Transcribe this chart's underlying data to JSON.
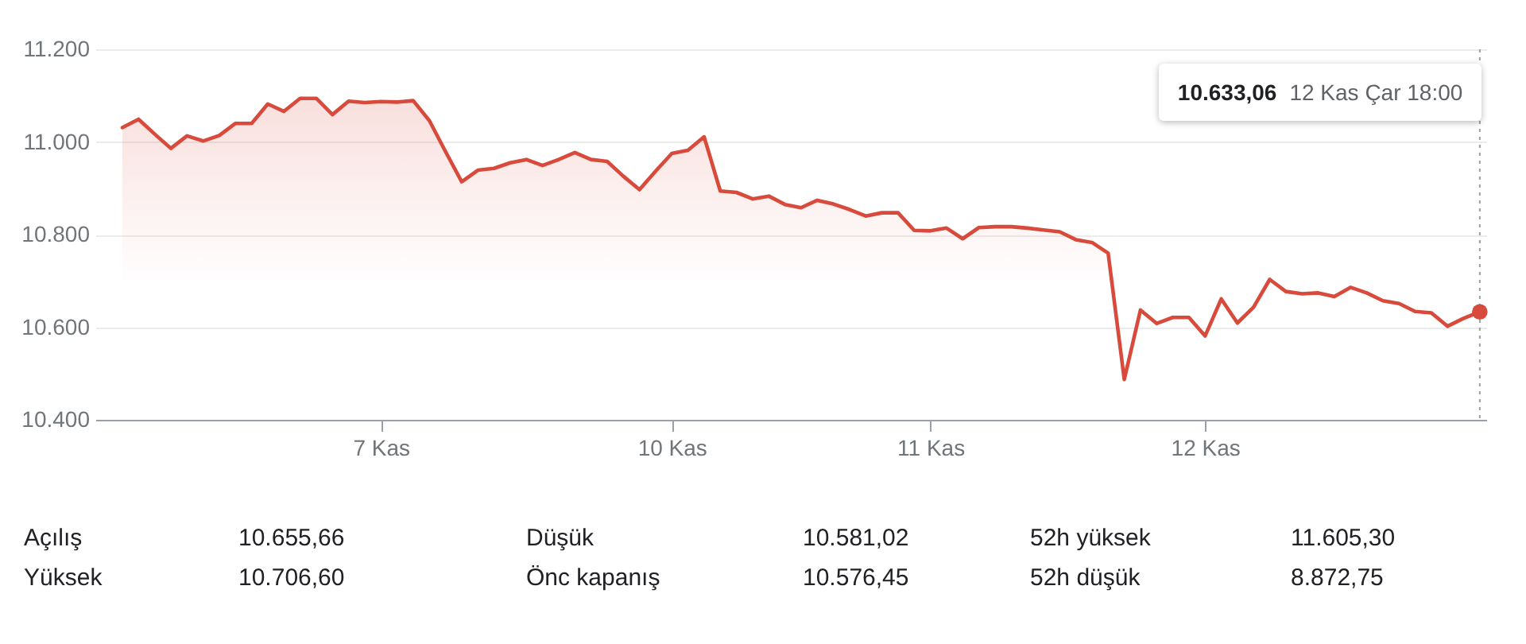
{
  "chart_data": [
    {
      "type": "area",
      "categories": [
        null,
        null,
        null,
        null,
        null,
        null,
        null,
        null,
        null,
        null,
        null,
        null,
        null,
        null,
        null,
        null,
        "7 Kas",
        null,
        null,
        null,
        null,
        null,
        null,
        null,
        null,
        null,
        null,
        null,
        null,
        null,
        null,
        null,
        null,
        null,
        "10 Kas",
        null,
        null,
        null,
        null,
        null,
        null,
        null,
        null,
        null,
        null,
        null,
        null,
        null,
        null,
        null,
        "11 Kas",
        null,
        null,
        null,
        null,
        null,
        null,
        null,
        null,
        null,
        null,
        null,
        null,
        null,
        null,
        null,
        null,
        "12 Kas",
        null,
        null,
        null,
        null,
        null,
        null,
        null,
        null,
        null,
        null,
        null,
        null,
        null,
        null,
        null,
        null,
        null
      ],
      "series": [
        {
          "color": "#d84a3b",
          "values": [
            11031,
            11049,
            11017,
            10986,
            11013,
            11002,
            11014,
            11040,
            11040,
            11082,
            11066,
            11094,
            11094,
            11059,
            11088,
            11085,
            11087,
            11086,
            11089,
            11046,
            10979,
            10914,
            10939,
            10943,
            10955,
            10962,
            10949,
            10962,
            10977,
            10962,
            10958,
            10926,
            10897,
            10937,
            10975,
            10982,
            11011,
            10894,
            10891,
            10877,
            10883,
            10865,
            10858,
            10874,
            10866,
            10854,
            10840,
            10847,
            10847,
            10809,
            10808,
            10814,
            10791,
            10815,
            10817,
            10817,
            10814,
            10810,
            10806,
            10789,
            10783,
            10760,
            10487,
            10637,
            10608,
            10621,
            10621,
            10581,
            10661,
            10609,
            10643,
            10703,
            10677,
            10672,
            10674,
            10666,
            10686,
            10674,
            10657,
            10651,
            10634,
            10631,
            10602,
            10619,
            10633.06
          ]
        },
        {
          "type": "scatter",
          "color": "#d84a3b",
          "values": [
            null,
            null,
            null,
            null,
            null,
            null,
            null,
            null,
            null,
            null,
            null,
            null,
            null,
            null,
            null,
            null,
            null,
            null,
            null,
            null,
            null,
            null,
            null,
            null,
            null,
            null,
            null,
            null,
            null,
            null,
            null,
            null,
            null,
            null,
            null,
            null,
            null,
            null,
            null,
            null,
            null,
            null,
            null,
            null,
            null,
            null,
            null,
            null,
            null,
            null,
            null,
            null,
            null,
            null,
            null,
            null,
            null,
            null,
            null,
            null,
            null,
            null,
            null,
            null,
            null,
            null,
            null,
            null,
            null,
            null,
            null,
            null,
            null,
            null,
            null,
            null,
            null,
            null,
            null,
            null,
            null,
            null,
            null,
            null,
            10633.06
          ]
        }
      ],
      "ylim": [
        10400,
        11200
      ],
      "yticks": [
        {
          "value": 10400,
          "label": "10.400"
        },
        {
          "value": 10600,
          "label": "10.600"
        },
        {
          "value": 10800,
          "label": "10.800"
        },
        {
          "value": 11000,
          "label": "11.000"
        },
        {
          "value": 11200,
          "label": "11.200"
        }
      ],
      "grid": "y",
      "annotations": [
        "10.633,06",
        "12 Kas Çar 18:00"
      ]
    },
    {
      "type": "other",
      "annotations": [
        "Açılış",
        "10.655,66",
        "Düşük",
        "10.581,02",
        "52h yüksek",
        "11.605,30",
        "Yüksek",
        "10.706,60",
        "Önc kapanış",
        "10.576,45",
        "52h düşük",
        "8.872,75"
      ]
    }
  ]
}
